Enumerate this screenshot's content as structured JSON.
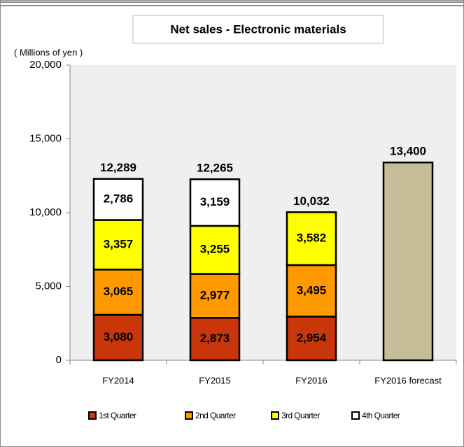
{
  "chart_data": {
    "type": "stacked_bar",
    "title": "Net sales - Electronic materials",
    "y_label": "( Millions of yen )",
    "categories": [
      "FY2014",
      "FY2015",
      "FY2016",
      "FY2016 forecast"
    ],
    "series": [
      {
        "name": "1st Quarter",
        "color": "#c8360a",
        "values": [
          3080,
          2873,
          2954,
          null
        ],
        "value_labels": [
          "3,080",
          "2,873",
          "2,954",
          null
        ]
      },
      {
        "name": "2nd Quarter",
        "color": "#ff9900",
        "values": [
          3065,
          2977,
          3495,
          null
        ],
        "value_labels": [
          "3,065",
          "2,977",
          "3,495",
          null
        ]
      },
      {
        "name": "3rd Quarter",
        "color": "#ffff00",
        "values": [
          3357,
          3255,
          3582,
          null
        ],
        "value_labels": [
          "3,357",
          "3,255",
          "3,582",
          null
        ]
      },
      {
        "name": "4th Quarter",
        "color": "#ffffff",
        "values": [
          2786,
          3159,
          null,
          null
        ],
        "value_labels": [
          "2,786",
          "3,159",
          null,
          null
        ]
      }
    ],
    "totals": {
      "values": [
        12289,
        12265,
        10032,
        null
      ],
      "value_labels": [
        "12,289",
        "12,265",
        "10,032",
        null
      ]
    },
    "forecast": {
      "color": "#c4bd97",
      "values": [
        null,
        null,
        null,
        13400
      ],
      "value_labels": [
        null,
        null,
        null,
        "13,400"
      ]
    },
    "ylim": [
      0,
      20000
    ],
    "yticks": [
      0,
      {
        "value": 5000,
        "label": "5,000"
      },
      {
        "value": 10000,
        "label": "10,000"
      },
      {
        "value": 15000,
        "label": "15,000"
      },
      {
        "value": 20000,
        "label": "20,000"
      }
    ],
    "grid": false
  }
}
